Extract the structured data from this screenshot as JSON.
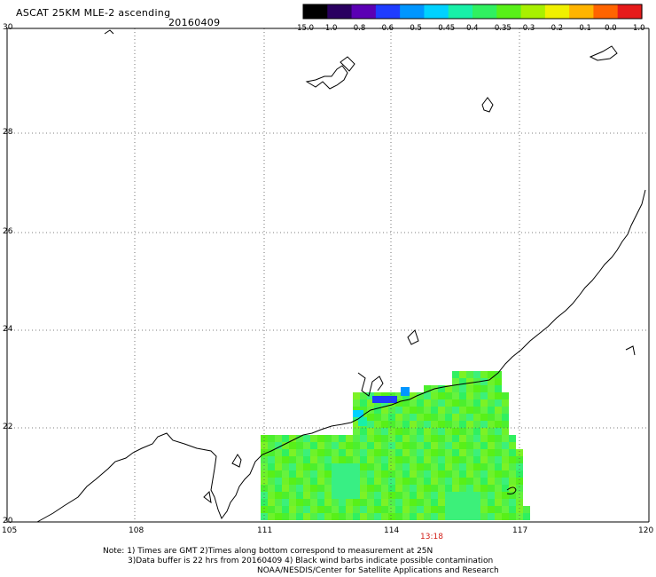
{
  "header": {
    "title": "ASCAT 25KM MLE-2 ascending",
    "date": "20160409"
  },
  "colorbar": {
    "labels": [
      "-15.0",
      "-1.0",
      "-0.8",
      "-0.6",
      "-0.5",
      "-0.45",
      "-0.4",
      "-0.35",
      "-0.3",
      "-0.2",
      "-0.1",
      "0.0",
      "1.0"
    ],
    "colors": [
      "#000000",
      "#2a0060",
      "#5b00b4",
      "#1f3cff",
      "#0096ff",
      "#00d2ff",
      "#18f0a8",
      "#30f060",
      "#58f018",
      "#a8f000",
      "#f0f000",
      "#ffb400",
      "#ff6400",
      "#e61a1a"
    ]
  },
  "axes": {
    "lat_labels": [
      "30",
      "28",
      "26",
      "24",
      "22",
      "20"
    ],
    "lon_labels": [
      "105",
      "108",
      "111",
      "114",
      "117",
      "120"
    ]
  },
  "overpass_time": "13:18",
  "notes": [
    "Note: 1) Times are GMT 2)Times along bottom correspond to measurement at 25N",
    "3)Data buffer is 22 hrs from 20160409 4) Black wind barbs indicate possible contamination",
    "NOAA/NESDIS/Center for Satellite Applications and Research"
  ]
}
